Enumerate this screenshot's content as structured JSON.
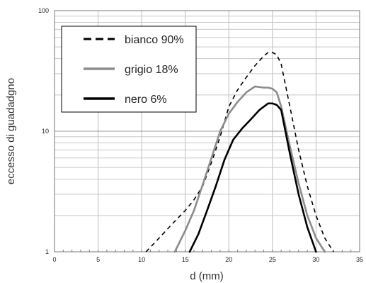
{
  "chart_data": {
    "type": "line",
    "title": "",
    "xlabel": "d (mm)",
    "ylabel": "eccesso di guadadgno",
    "xlim": [
      0,
      35
    ],
    "ylim": [
      1,
      100
    ],
    "yscale": "log",
    "grid": true,
    "legend_position": "top-left",
    "x_ticks": [
      "0",
      "5",
      "10",
      "15",
      "20",
      "25",
      "30",
      "35"
    ],
    "y_ticks": [
      "1",
      "10",
      "100"
    ],
    "series": [
      {
        "name": "bianco 90%",
        "style": "dashed",
        "color": "#000000",
        "x": [
          10.5,
          12,
          13.5,
          15,
          16,
          17,
          18,
          19,
          20,
          21,
          22,
          23,
          24,
          24.5,
          25,
          25.5,
          26,
          27,
          28,
          29,
          30,
          31,
          32
        ],
        "y": [
          1,
          1.3,
          1.7,
          2.2,
          2.7,
          3.5,
          5.5,
          9,
          16,
          22,
          28,
          35,
          42,
          45,
          45,
          43,
          36,
          16,
          7,
          3.5,
          2,
          1.3,
          1
        ]
      },
      {
        "name": "grigio 18%",
        "style": "solid",
        "color": "#8c8c8c",
        "x": [
          13.8,
          15,
          16,
          17,
          18,
          19,
          20,
          21,
          22,
          23,
          24,
          24.5,
          25,
          25.5,
          26,
          27,
          28,
          29,
          30,
          31
        ],
        "y": [
          1,
          1.5,
          2.2,
          3.6,
          6,
          10,
          14,
          17.5,
          21,
          23.5,
          23,
          23,
          22.5,
          21,
          16,
          7.5,
          3.7,
          2,
          1.3,
          1
        ]
      },
      {
        "name": "nero 6%",
        "style": "solid",
        "color": "#000000",
        "x": [
          15.5,
          16.5,
          17.5,
          18.5,
          19.5,
          20.5,
          21.5,
          22.5,
          23.5,
          24.5,
          25,
          25.5,
          26,
          27,
          28,
          29,
          30
        ],
        "y": [
          1,
          1.4,
          2.2,
          3.5,
          5.8,
          8.5,
          10.5,
          12.5,
          15,
          17,
          17,
          16.5,
          15,
          6.5,
          3,
          1.6,
          1
        ]
      }
    ]
  }
}
